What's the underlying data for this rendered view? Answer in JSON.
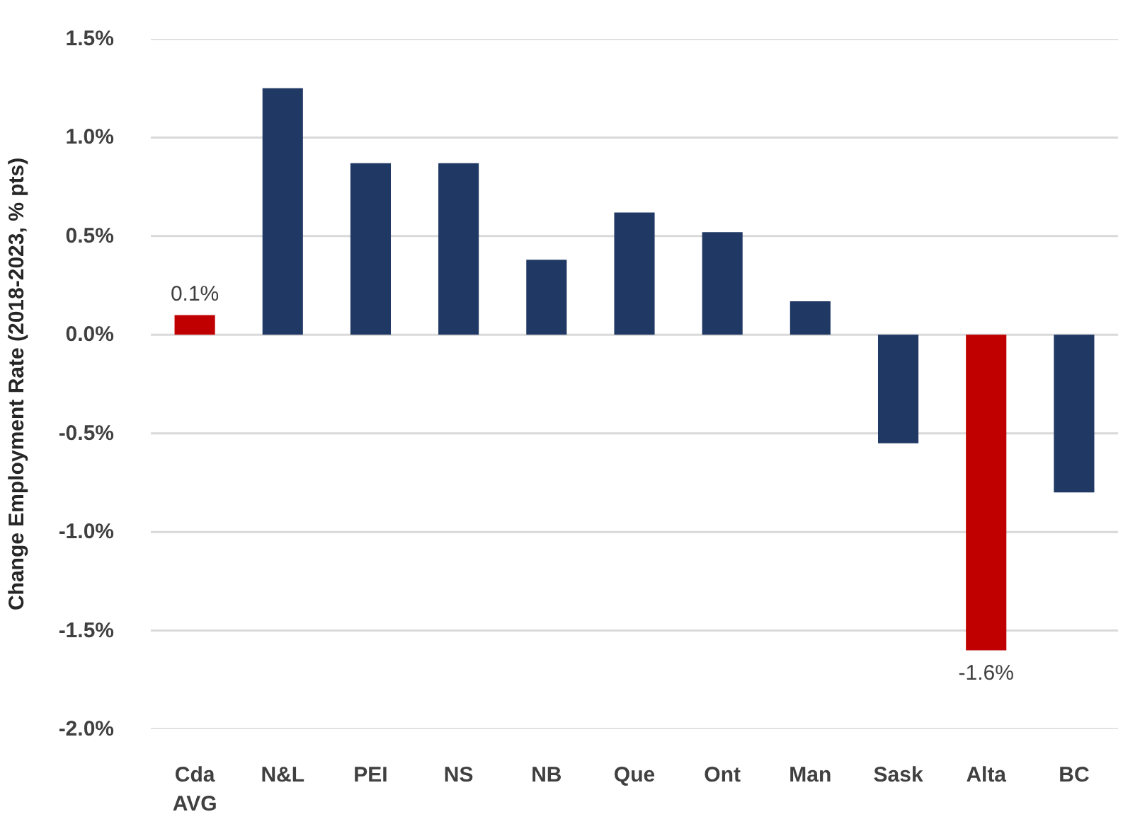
{
  "chart_data": {
    "type": "bar",
    "ylabel": "Change Employment Rate (2018-2023, % pts)",
    "categories": [
      "Cda AVG",
      "N&L",
      "PEI",
      "NS",
      "NB",
      "Que",
      "Ont",
      "Man",
      "Sask",
      "Alta",
      "BC"
    ],
    "values": [
      0.1,
      1.25,
      0.87,
      0.87,
      0.38,
      0.62,
      0.52,
      0.17,
      -0.55,
      -1.6,
      -0.8
    ],
    "colors": [
      "#c00000",
      "#1f3864",
      "#1f3864",
      "#1f3864",
      "#1f3864",
      "#1f3864",
      "#1f3864",
      "#1f3864",
      "#1f3864",
      "#c00000",
      "#1f3864"
    ],
    "value_labels": [
      "0.1%",
      null,
      null,
      null,
      null,
      null,
      null,
      null,
      null,
      "-1.6%",
      null
    ],
    "ylim": [
      -2.0,
      1.5
    ],
    "yticks": [
      {
        "value": -2.0,
        "label": "-2.0%"
      },
      {
        "value": -1.5,
        "label": "-1.5%"
      },
      {
        "value": -1.0,
        "label": "-1.0%"
      },
      {
        "value": -0.5,
        "label": "-0.5%"
      },
      {
        "value": 0.0,
        "label": "0.0%"
      },
      {
        "value": 0.5,
        "label": "0.5%"
      },
      {
        "value": 1.0,
        "label": "1.0%"
      },
      {
        "value": 1.5,
        "label": "1.5%"
      }
    ],
    "grid": "y"
  }
}
